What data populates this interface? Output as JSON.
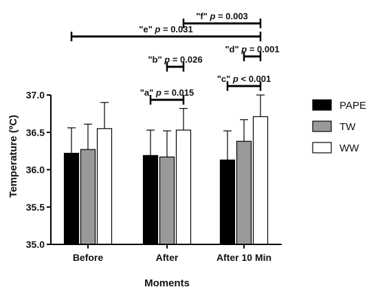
{
  "chart_data": {
    "type": "bar",
    "title": "",
    "xlabel": "Moments",
    "ylabel": "Temperature (ºC)",
    "ylim": [
      35.0,
      37.0
    ],
    "yticks": [
      "35.0",
      "35.5",
      "36.0",
      "36.5",
      "37.0"
    ],
    "ytick_values": [
      35.0,
      35.5,
      36.0,
      36.5,
      37.0
    ],
    "categories": [
      "Before",
      "After",
      "After 10 Min"
    ],
    "error_bars": "upper, standard deviation",
    "series": [
      {
        "name": "PAPE",
        "color": "#000000",
        "values": [
          36.22,
          36.19,
          36.13
        ],
        "errors": [
          0.34,
          0.34,
          0.39
        ]
      },
      {
        "name": "TW",
        "color": "#999999",
        "values": [
          36.27,
          36.17,
          36.38
        ],
        "errors": [
          0.34,
          0.35,
          0.29
        ]
      },
      {
        "name": "WW",
        "color": "#ffffff",
        "values": [
          36.55,
          36.53,
          36.71
        ],
        "errors": [
          0.35,
          0.29,
          0.29
        ]
      }
    ],
    "legend_position": "right",
    "annotations": [
      {
        "tag": "\"a\"",
        "p_label": "p",
        "rel": "=",
        "value": "0.015",
        "from": {
          "category": 1,
          "series": 0
        },
        "to": {
          "category": 1,
          "series": 2
        }
      },
      {
        "tag": "\"b\"",
        "p_label": "p",
        "rel": "=",
        "value": "0.026",
        "from": {
          "category": 1,
          "series": 1
        },
        "to": {
          "category": 1,
          "series": 2
        }
      },
      {
        "tag": "\"c\"",
        "p_label": "p",
        "rel": "<",
        "value": "0.001",
        "from": {
          "category": 2,
          "series": 0
        },
        "to": {
          "category": 2,
          "series": 2
        }
      },
      {
        "tag": "\"d\"",
        "p_label": "p",
        "rel": "=",
        "value": "0.001",
        "from": {
          "category": 2,
          "series": 1
        },
        "to": {
          "category": 2,
          "series": 2
        }
      },
      {
        "tag": "\"e\"",
        "p_label": "p",
        "rel": "=",
        "value": "0.031",
        "from": {
          "category": 0,
          "series": 0
        },
        "to": {
          "category": 2,
          "series": 2
        }
      },
      {
        "tag": "\"f\"",
        "p_label": "p",
        "rel": "=",
        "value": "0.003",
        "from": {
          "category": 1,
          "series": 2
        },
        "to": {
          "category": 2,
          "series": 2
        }
      }
    ]
  }
}
